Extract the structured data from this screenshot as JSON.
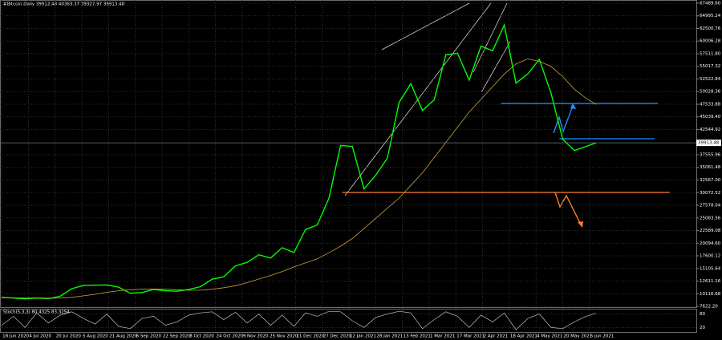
{
  "chart_data": {
    "type": "ohlc-line",
    "title": "#Bitcoin,Daily  39912.48 40363.37 39327.97 39913.48",
    "x": [
      "2020-06-18",
      "2020-06-25",
      "2020-07-02",
      "2020-07-09",
      "2020-07-16",
      "2020-07-23",
      "2020-07-30",
      "2020-08-06",
      "2020-08-13",
      "2020-08-20",
      "2020-08-27",
      "2020-09-03",
      "2020-09-10",
      "2020-09-17",
      "2020-09-24",
      "2020-10-01",
      "2020-10-08",
      "2020-10-15",
      "2020-10-22",
      "2020-10-29",
      "2020-11-05",
      "2020-11-12",
      "2020-11-19",
      "2020-11-26",
      "2020-12-03",
      "2020-12-10",
      "2020-12-17",
      "2020-12-24",
      "2020-12-31",
      "2021-01-07",
      "2021-01-14",
      "2021-01-21",
      "2021-01-28",
      "2021-02-04",
      "2021-02-11",
      "2021-02-18",
      "2021-02-25",
      "2021-03-04",
      "2021-03-11",
      "2021-03-18",
      "2021-03-25",
      "2021-04-01",
      "2021-04-08",
      "2021-04-15",
      "2021-04-22",
      "2021-04-29",
      "2021-05-06",
      "2021-05-13",
      "2021-05-20",
      "2021-05-27",
      "2021-06-03",
      "2021-06-09"
    ],
    "series": [
      {
        "color": "#00ff00",
        "values": [
          9400,
          9250,
          9100,
          9250,
          9150,
          9600,
          11100,
          11750,
          11800,
          11850,
          11400,
          10200,
          10350,
          10950,
          10700,
          10600,
          10950,
          11500,
          12980,
          13450,
          15600,
          16300,
          17800,
          17150,
          19200,
          18250,
          22800,
          23700,
          29000,
          39400,
          39200,
          30800,
          33500,
          36900,
          47900,
          51600,
          46300,
          48400,
          57300,
          57600,
          52300,
          59000,
          58100,
          63200,
          51700,
          53500,
          56400,
          49700,
          40600,
          38400,
          39200,
          39913.48
        ]
      },
      {
        "color": "#c8a040",
        "values": [
          9300,
          9300,
          9280,
          9250,
          9230,
          9250,
          9400,
          9700,
          10000,
          10400,
          10700,
          10900,
          11000,
          11050,
          11000,
          10900,
          10800,
          10800,
          11000,
          11300,
          11700,
          12300,
          13000,
          13700,
          14500,
          15400,
          16200,
          17000,
          18200,
          19500,
          21000,
          23000,
          25000,
          27000,
          29000,
          31500,
          34000,
          37000,
          40000,
          43000,
          46000,
          48500,
          51000,
          53500,
          55500,
          56500,
          56000,
          55000,
          53000,
          50500,
          48700,
          47500
        ]
      }
    ],
    "ylim": [
      7464,
      68123
    ],
    "yticks": [
      {
        "value": 7622.2,
        "label": "7622.20"
      },
      {
        "value": 10116.68,
        "label": "10116.68"
      },
      {
        "value": 12611.16,
        "label": "12611.16"
      },
      {
        "value": 15105.64,
        "label": "15105.64"
      },
      {
        "value": 17600.12,
        "label": "17600.12"
      },
      {
        "value": 20094.6,
        "label": "20094.60"
      },
      {
        "value": 22589.08,
        "label": "22589.08"
      },
      {
        "value": 25083.56,
        "label": "25083.56"
      },
      {
        "value": 27578.04,
        "label": "27578.04"
      },
      {
        "value": 30072.52,
        "label": "30072.52"
      },
      {
        "value": 32567,
        "label": "32567.00"
      },
      {
        "value": 35061.48,
        "label": "35061.48"
      },
      {
        "value": 37555.96,
        "label": "37555.96"
      },
      {
        "value": 42544.92,
        "label": "42544.92"
      },
      {
        "value": 45039.4,
        "label": "45039.40"
      },
      {
        "value": 47533.88,
        "label": "47533.88"
      },
      {
        "value": 50028.36,
        "label": "50028.36"
      },
      {
        "value": 52522.84,
        "label": "52522.84"
      },
      {
        "value": 55017.32,
        "label": "55017.32"
      },
      {
        "value": 57511.8,
        "label": "57511.80"
      },
      {
        "value": 60006.28,
        "label": "60006.28"
      },
      {
        "value": 62500.76,
        "label": "62500.76"
      },
      {
        "value": 64995.24,
        "label": "64995.24"
      },
      {
        "value": 67489.6,
        "label": "67489.60"
      }
    ],
    "xticks": [
      {
        "value": "2020-06-18",
        "label": "18 Jun 2020"
      },
      {
        "value": "2020-07-04",
        "label": "4 Jul 2020"
      },
      {
        "value": "2020-07-20",
        "label": "20 Jul 2020"
      },
      {
        "value": "2020-08-05",
        "label": "5 Aug 2020"
      },
      {
        "value": "2020-08-21",
        "label": "21 Aug 2020"
      },
      {
        "value": "2020-09-06",
        "label": "6 Sep 2020"
      },
      {
        "value": "2020-09-22",
        "label": "22 Sep 2020"
      },
      {
        "value": "2020-10-08",
        "label": "8 Oct 2020"
      },
      {
        "value": "2020-10-24",
        "label": "24 Oct 2020"
      },
      {
        "value": "2020-11-09",
        "label": "9 Nov 2020"
      },
      {
        "value": "2020-11-25",
        "label": "25 Nov 2020"
      },
      {
        "value": "2020-12-11",
        "label": "11 Dec 2020"
      },
      {
        "value": "2020-12-27",
        "label": "27 Dec 2020"
      },
      {
        "value": "2021-01-12",
        "label": "12 Jan 2021"
      },
      {
        "value": "2021-01-28",
        "label": "28 Jan 2021"
      },
      {
        "value": "2021-02-13",
        "label": "13 Feb 2021"
      },
      {
        "value": "2021-03-01",
        "label": "1 Mar 2021"
      },
      {
        "value": "2021-03-17",
        "label": "17 Mar 2021"
      },
      {
        "value": "2021-04-02",
        "label": "2 Apr 2021"
      },
      {
        "value": "2021-04-18",
        "label": "18 Apr 2021"
      },
      {
        "value": "2021-05-04",
        "label": "4 May 2021"
      },
      {
        "value": "2021-05-20",
        "label": "20 May 2021"
      },
      {
        "value": "2021-06-05",
        "label": "5 Jun 2021"
      }
    ],
    "xlim": [
      "2020-06-17",
      "2021-08-08"
    ],
    "last_price": {
      "value": 39913.48,
      "label": "39913.48"
    },
    "levels": [
      {
        "value": 47690,
        "color": "#1e90ff",
        "from": "2021-04-13",
        "to": "2021-07-16"
      },
      {
        "value": 40720,
        "color": "#1e90ff",
        "from": "2021-05-18",
        "to": "2021-07-14"
      },
      {
        "value": 30107,
        "color": "#ff7f27",
        "from": "2021-01-08",
        "to": "2021-07-23"
      }
    ],
    "grid": true,
    "oscillator": {
      "title": "Stoch(5,3,3) 80.4325 83.3254",
      "color": "#c0c0c0",
      "ylim": [
        0,
        100
      ],
      "yticks": [
        20,
        80
      ],
      "values": [
        30,
        70,
        20,
        85,
        40,
        75,
        90,
        60,
        35,
        80,
        25,
        15,
        60,
        70,
        30,
        45,
        75,
        85,
        90,
        55,
        88,
        40,
        80,
        30,
        75,
        25,
        85,
        70,
        92,
        90,
        50,
        20,
        65,
        80,
        92,
        85,
        15,
        55,
        90,
        70,
        20,
        75,
        45,
        85,
        10,
        60,
        80,
        20,
        15,
        45,
        70,
        83.3254
      ]
    }
  }
}
